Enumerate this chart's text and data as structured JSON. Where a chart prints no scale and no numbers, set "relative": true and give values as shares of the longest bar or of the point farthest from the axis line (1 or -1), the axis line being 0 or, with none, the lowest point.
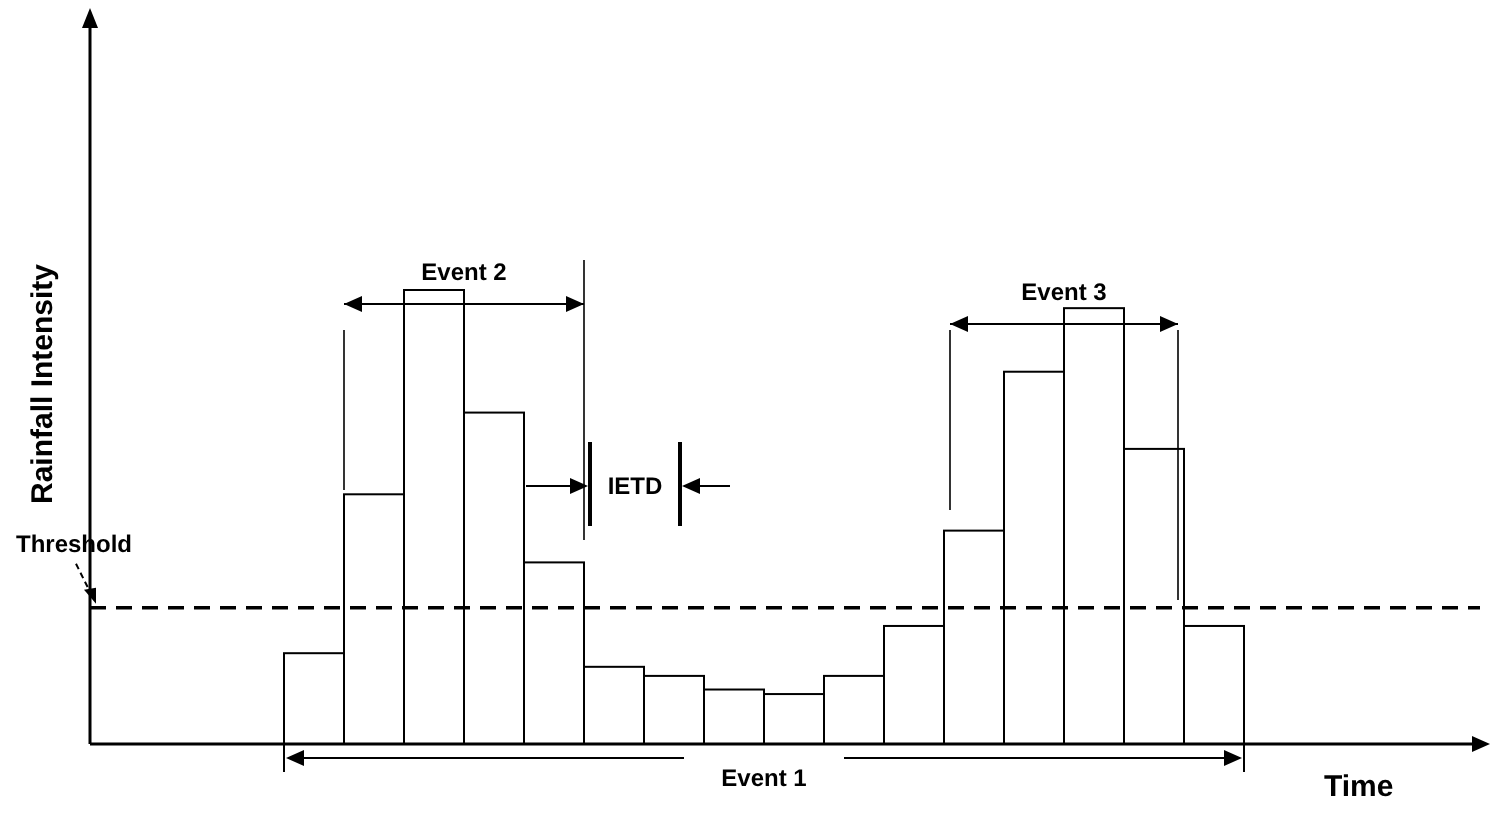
{
  "chart_data": {
    "type": "bar",
    "relative": true,
    "xlabel": "Time",
    "categories": [
      null,
      null,
      null,
      null,
      null,
      null,
      null,
      null,
      null,
      null,
      null,
      null,
      null,
      null,
      null,
      null
    ],
    "values": [
      0.2,
      0.55,
      1,
      0.73,
      0.4,
      0.17,
      0.15,
      0.12,
      0.11,
      0.15,
      0.26,
      0.47,
      0.82,
      0.96,
      0.65,
      0.26
    ],
    "color": "#ffffff",
    "ref_lines": [
      {
        "axis": "y",
        "value": 0.3,
        "label": "Threshold",
        "color": "#000000",
        "line_style": "dashed"
      }
    ],
    "annotations": [
      "Event 1",
      "Event 2",
      "Event 3",
      "IETD",
      "Rainfall Intensity"
    ]
  }
}
